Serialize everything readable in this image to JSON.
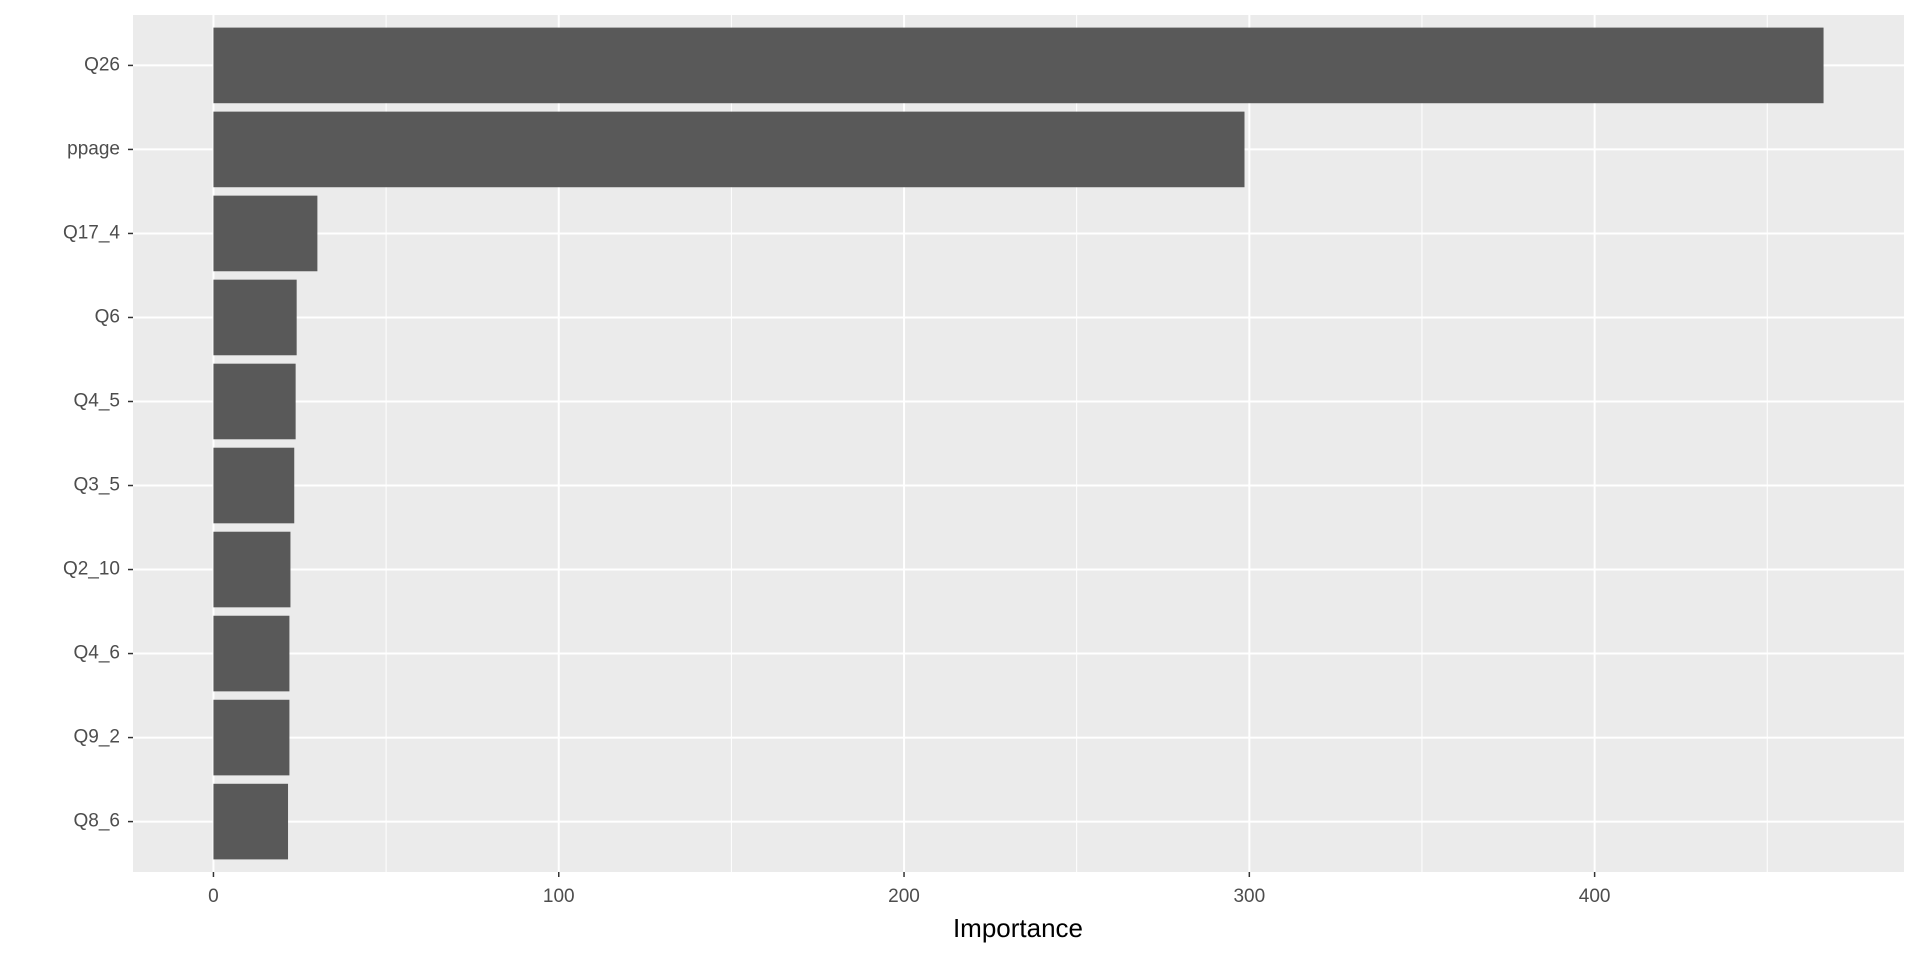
{
  "chart_data": {
    "type": "barh",
    "x_label": "Importance",
    "categories": [
      "Q26",
      "ppage",
      "Q17_4",
      "Q6",
      "Q4_5",
      "Q3_5",
      "Q2_10",
      "Q4_6",
      "Q9_2",
      "Q8_6"
    ],
    "values": [
      466.3,
      298.6,
      30.1,
      24.1,
      23.8,
      23.4,
      22.3,
      22.0,
      22.0,
      21.6
    ],
    "color": "#595959",
    "xlim": [
      -23.3,
      489.6
    ],
    "xticks": [
      0,
      100,
      200,
      300,
      400
    ],
    "x_minor_gridlines": [
      50,
      150,
      250,
      350,
      450
    ],
    "grid": true
  }
}
